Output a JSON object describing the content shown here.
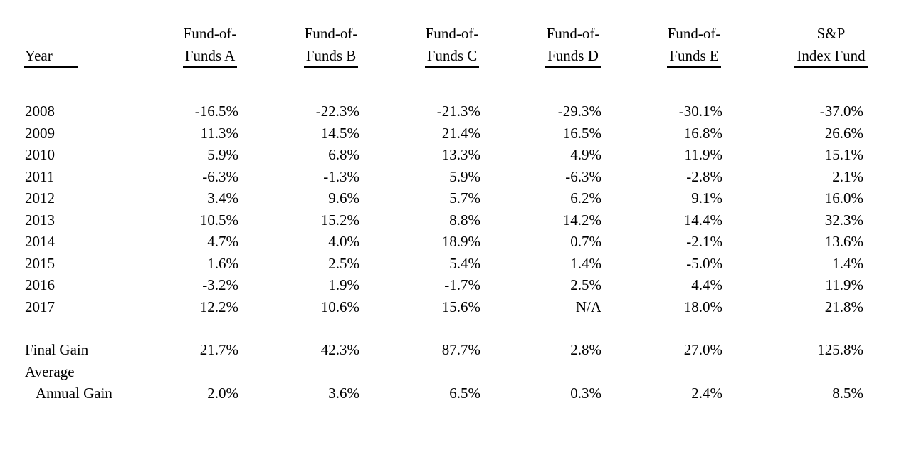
{
  "table": {
    "row_label_header": "Year",
    "columns": [
      {
        "line1": "Fund-of-",
        "line2": "Funds A"
      },
      {
        "line1": "Fund-of-",
        "line2": "Funds B"
      },
      {
        "line1": "Fund-of-",
        "line2": "Funds C"
      },
      {
        "line1": "Fund-of-",
        "line2": "Funds D"
      },
      {
        "line1": "Fund-of-",
        "line2": "Funds E"
      },
      {
        "line1": "S&P",
        "line2": "Index Fund"
      }
    ],
    "rows": [
      {
        "label": "2008",
        "values": [
          "-16.5%",
          "-22.3%",
          "-21.3%",
          "-29.3%",
          "-30.1%",
          "-37.0%"
        ]
      },
      {
        "label": "2009",
        "values": [
          "11.3%",
          "14.5%",
          "21.4%",
          "16.5%",
          "16.8%",
          "26.6%"
        ]
      },
      {
        "label": "2010",
        "values": [
          "5.9%",
          "6.8%",
          "13.3%",
          "4.9%",
          "11.9%",
          "15.1%"
        ]
      },
      {
        "label": "2011",
        "values": [
          "-6.3%",
          "-1.3%",
          "5.9%",
          "-6.3%",
          "-2.8%",
          "2.1%"
        ]
      },
      {
        "label": "2012",
        "values": [
          "3.4%",
          "9.6%",
          "5.7%",
          "6.2%",
          "9.1%",
          "16.0%"
        ]
      },
      {
        "label": "2013",
        "values": [
          "10.5%",
          "15.2%",
          "8.8%",
          "14.2%",
          "14.4%",
          "32.3%"
        ]
      },
      {
        "label": "2014",
        "values": [
          "4.7%",
          "4.0%",
          "18.9%",
          "0.7%",
          "-2.1%",
          "13.6%"
        ]
      },
      {
        "label": "2015",
        "values": [
          "1.6%",
          "2.5%",
          "5.4%",
          "1.4%",
          "-5.0%",
          "1.4%"
        ]
      },
      {
        "label": "2016",
        "values": [
          "-3.2%",
          "1.9%",
          "-1.7%",
          "2.5%",
          "4.4%",
          "11.9%"
        ]
      },
      {
        "label": "2017",
        "values": [
          "12.2%",
          "10.6%",
          "15.6%",
          "N/A",
          "18.0%",
          "21.8%"
        ]
      }
    ],
    "summary": {
      "final_gain": {
        "label": "Final Gain",
        "values": [
          "21.7%",
          "42.3%",
          "87.7%",
          "2.8%",
          "27.0%",
          "125.8%"
        ]
      },
      "average_label_line1": "Average",
      "average_annual_gain": {
        "label": "Annual Gain",
        "values": [
          "2.0%",
          "3.6%",
          "6.5%",
          "0.3%",
          "2.4%",
          "8.5%"
        ]
      }
    },
    "colors": {
      "text": "#000000",
      "background": "#ffffff",
      "rule": "#000000"
    }
  }
}
